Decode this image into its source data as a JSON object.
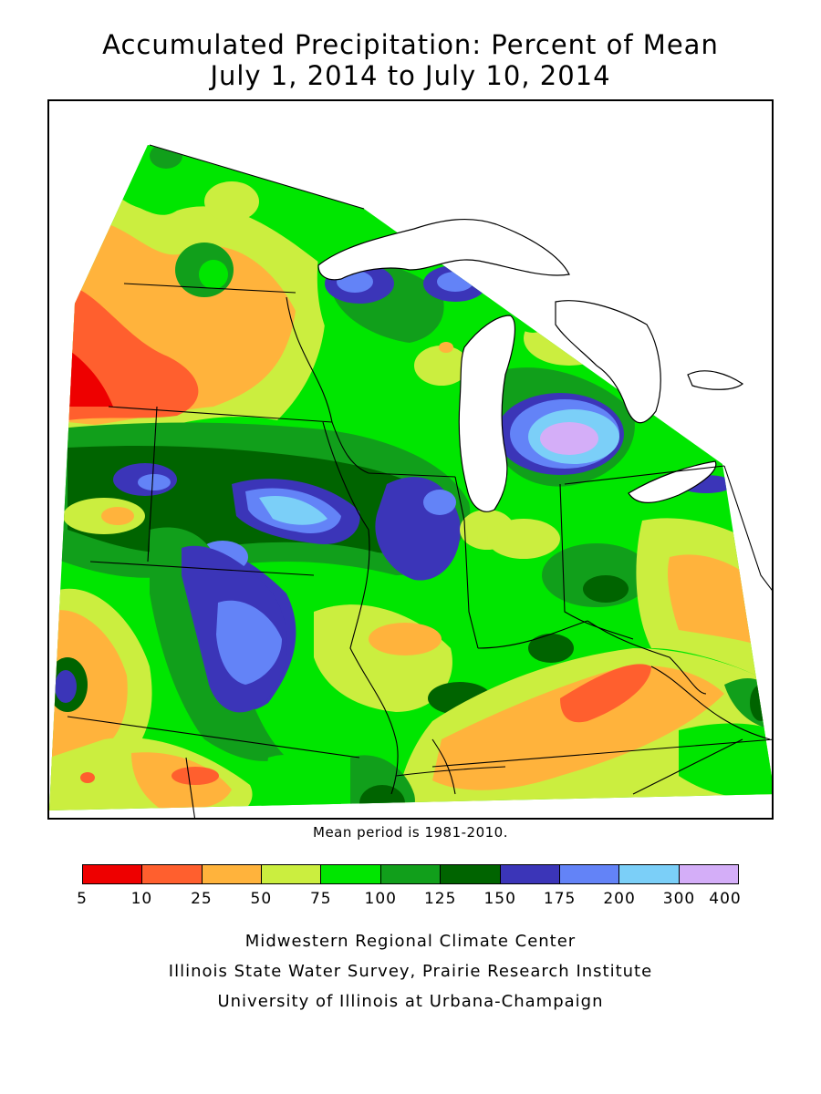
{
  "title_line1": "Accumulated Precipitation: Percent of Mean",
  "title_line2": "July 1, 2014 to July 10, 2014",
  "note": "Mean period is 1981-2010.",
  "legend": {
    "colors": [
      "#ee0000",
      "#ff5f2e",
      "#ffb33c",
      "#cbee3f",
      "#00e600",
      "#119f1b",
      "#006400",
      "#3b35b8",
      "#6383f7",
      "#7bcff8",
      "#d4aef8"
    ],
    "ticks": [
      "5",
      "10",
      "25",
      "50",
      "75",
      "100",
      "125",
      "150",
      "175",
      "200",
      "300",
      "400"
    ]
  },
  "credits": [
    "Midwestern Regional Climate Center",
    "Illinois State Water Survey, Prairie Research Institute",
    "University of Illinois at Urbana-Champaign"
  ]
}
